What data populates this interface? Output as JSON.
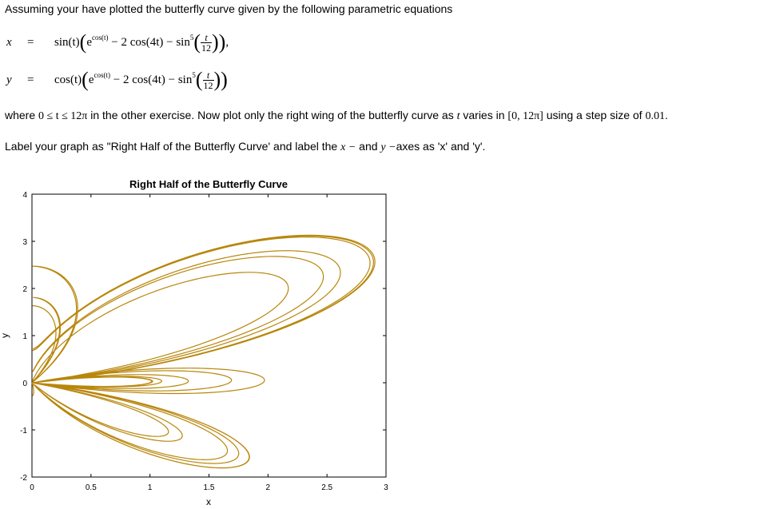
{
  "problem": {
    "intro": "Assuming your have plotted the butterfly curve given by the following parametric equations",
    "eq_x": {
      "var": "x",
      "eq": "=",
      "trig": "sin(t)",
      "exp_base": "e",
      "exp_sup": "cos(t)",
      "mid": " − 2 cos(4t) − sin",
      "pow": "5",
      "num": "t",
      "den": "12",
      "end": ","
    },
    "eq_y": {
      "var": "y",
      "eq": "=",
      "trig": "cos(t)",
      "exp_base": "e",
      "exp_sup": "cos(t)",
      "mid": " − 2 cos(4t) − sin",
      "pow": "5",
      "num": "t",
      "den": "12",
      "end": ""
    },
    "line3": {
      "a": "where ",
      "range": "0 ≤ t ≤ 12π",
      "b": " in the other exercise. Now plot only the right wing of the butterfly curve as ",
      "t": "t",
      "c": " varies in ",
      "interval": "[0, 12π]",
      "d": " using a step size of ",
      "step": "0.01",
      "e": "."
    },
    "line4": {
      "a": "Label your graph as \"Right Half of the Butterfly Curve' and label the ",
      "x": "x −",
      "b": " and ",
      "y": "y −",
      "c": "axes as 'x' and 'y'."
    }
  },
  "chart_data": {
    "type": "line",
    "title": "Right Half of the Butterfly Curve",
    "xlabel": "x",
    "ylabel": "y",
    "xlim": [
      0,
      3
    ],
    "ylim": [
      -2,
      4
    ],
    "xticks": [
      "0",
      "0.5",
      "1",
      "1.5",
      "2",
      "2.5",
      "3"
    ],
    "yticks": [
      "-2",
      "-1",
      "0",
      "1",
      "2",
      "3",
      "4"
    ],
    "series": [
      {
        "equation_x": "sin(t)(e^cos(t) − 2cos(4t) − sin^5(t/12))",
        "equation_y": "cos(t)(e^cos(t) − 2cos(4t) − sin^5(t/12))",
        "t_range": [
          0,
          37.699
        ],
        "step": 0.01,
        "filter": "x >= 0",
        "color": "#B8860B"
      }
    ],
    "grid": false
  }
}
